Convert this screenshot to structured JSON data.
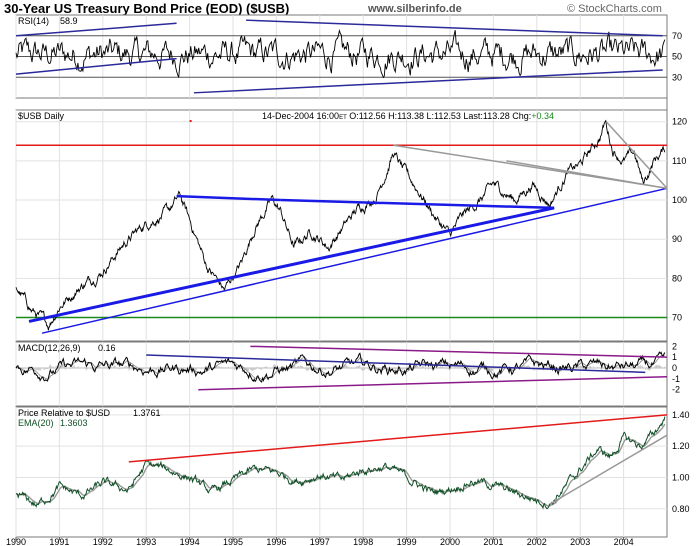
{
  "header": {
    "title": "30-Year US Treasury Bond Price (EOD) ($USB)",
    "site": "www.silberinfo.de",
    "credit": "© StockCharts.com"
  },
  "chart_data": [
    {
      "type": "line",
      "panel": "rsi",
      "label": "RSI(14)",
      "value_text": "58.9",
      "y_ticks": [
        "70",
        "50",
        "30"
      ],
      "ylim": [
        10,
        90
      ],
      "reference_levels": [
        70,
        50,
        30
      ],
      "trendlines": [
        {
          "color": "#2a2a9a",
          "points": [
            [
              1990.0,
              33
            ],
            [
              1993.7,
              48
            ]
          ]
        },
        {
          "color": "#2a2a9a",
          "points": [
            [
              1990.0,
              70
            ],
            [
              1993.7,
              82
            ]
          ]
        },
        {
          "color": "#2a2a9a",
          "points": [
            [
              1994.1,
              15
            ],
            [
              2004.9,
              37
            ]
          ]
        },
        {
          "color": "#2a2a9a",
          "points": [
            [
              1995.3,
              85
            ],
            [
              2004.9,
              70
            ]
          ]
        }
      ]
    },
    {
      "type": "line",
      "panel": "price",
      "label": "$USB Daily",
      "info": {
        "date": "14-Dec-2004 16:00",
        "tz": "ET",
        "open": "O:112.56",
        "high": "H:113.38",
        "low": "L:112.53",
        "last": "Last:113.28",
        "chg_label": "Chg:",
        "chg_value": "+0.34"
      },
      "y_ticks": [
        "120",
        "110",
        "100",
        "90",
        "80",
        "70"
      ],
      "ylim": [
        64,
        123
      ],
      "x_ticks": [
        "1990",
        "1991",
        "1992",
        "1993",
        "1994",
        "1995",
        "1996",
        "1997",
        "1998",
        "1999",
        "2000",
        "2001",
        "2002",
        "2003",
        "2004"
      ],
      "xlim": [
        1990.0,
        2005.0
      ],
      "anchors": [
        [
          1990.0,
          78
        ],
        [
          1990.35,
          72
        ],
        [
          1990.75,
          68
        ],
        [
          1991.0,
          73
        ],
        [
          1991.5,
          78
        ],
        [
          1992.0,
          82
        ],
        [
          1992.5,
          89
        ],
        [
          1993.0,
          94
        ],
        [
          1993.5,
          97
        ],
        [
          1993.78,
          101
        ],
        [
          1994.1,
          92
        ],
        [
          1994.4,
          83
        ],
        [
          1994.8,
          77
        ],
        [
          1995.2,
          84
        ],
        [
          1995.5,
          93
        ],
        [
          1995.9,
          100
        ],
        [
          1996.1,
          97
        ],
        [
          1996.4,
          88
        ],
        [
          1996.8,
          92
        ],
        [
          1997.2,
          88
        ],
        [
          1997.6,
          94
        ],
        [
          1997.9,
          98
        ],
        [
          1998.3,
          101
        ],
        [
          1998.7,
          112
        ],
        [
          1998.9,
          108
        ],
        [
          1999.3,
          102
        ],
        [
          1999.7,
          95
        ],
        [
          2000.0,
          91
        ],
        [
          2000.3,
          96
        ],
        [
          2000.7,
          100
        ],
        [
          2001.0,
          104
        ],
        [
          2001.5,
          100
        ],
        [
          2001.9,
          104
        ],
        [
          2002.3,
          99
        ],
        [
          2002.7,
          107
        ],
        [
          2003.0,
          109
        ],
        [
          2003.45,
          116
        ],
        [
          2003.58,
          120
        ],
        [
          2003.75,
          113
        ],
        [
          2004.0,
          110
        ],
        [
          2004.25,
          112
        ],
        [
          2004.45,
          104
        ],
        [
          2004.7,
          110
        ],
        [
          2004.95,
          113
        ]
      ],
      "horizontal_lines": [
        {
          "color": "#e31a1a",
          "value": 114
        },
        {
          "color": "#1a8a1a",
          "value": 70
        }
      ],
      "trendlines": [
        {
          "color": "#1a1ae6",
          "width": 2.5,
          "points": [
            [
              1993.7,
              101
            ],
            [
              1996.1,
              100
            ]
          ]
        },
        {
          "color": "#1a1ae6",
          "width": 2.5,
          "points": [
            [
              1996.1,
              100
            ],
            [
              2002.4,
              98
            ]
          ]
        },
        {
          "color": "#1a1ae6",
          "width": 3,
          "points": [
            [
              1990.3,
              69
            ],
            [
              2002.4,
              98
            ]
          ]
        },
        {
          "color": "#1a1ae6",
          "width": 1.5,
          "points": [
            [
              1990.6,
              66
            ],
            [
              2005.0,
              103
            ]
          ]
        },
        {
          "color": "#999999",
          "width": 1.5,
          "points": [
            [
              1998.7,
              114
            ],
            [
              2005.0,
              103
            ]
          ]
        },
        {
          "color": "#999999",
          "width": 1.5,
          "points": [
            [
              2003.6,
              120
            ],
            [
              2005.0,
              103
            ]
          ]
        },
        {
          "color": "#999999",
          "width": 1.5,
          "points": [
            [
              2001.3,
              110
            ],
            [
              2005.0,
              103
            ]
          ]
        }
      ]
    },
    {
      "type": "line",
      "panel": "macd",
      "label": "MACD(12,26,9)",
      "value_text": "0.16",
      "y_ticks": [
        "2",
        "1",
        "0",
        "-1",
        "-2"
      ],
      "ylim": [
        -3.5,
        2.4
      ],
      "trendlines": [
        {
          "color": "#8a1a8a",
          "points": [
            [
              1994.2,
              -2
            ],
            [
              2005.0,
              -0.8
            ]
          ]
        },
        {
          "color": "#8a1a8a",
          "points": [
            [
              1995.4,
              2
            ],
            [
              2005.0,
              1
            ]
          ]
        },
        {
          "color": "#2a2a9a",
          "points": [
            [
              1993.0,
              1.2
            ],
            [
              2004.5,
              -0.4
            ]
          ]
        }
      ]
    },
    {
      "type": "line",
      "panel": "relative",
      "label": "Price Relative to $USD",
      "value_text": "1.3761",
      "ema_label": "EMA(20)",
      "ema_value": "1.3603",
      "y_ticks": [
        "1.40",
        "1.20",
        "1.00",
        "0.80"
      ],
      "ylim": [
        0.62,
        1.45
      ],
      "anchors": [
        [
          1990.0,
          0.9
        ],
        [
          1990.5,
          0.82
        ],
        [
          1991.0,
          0.94
        ],
        [
          1991.5,
          0.88
        ],
        [
          1992.0,
          0.96
        ],
        [
          1992.6,
          0.92
        ],
        [
          1993.0,
          1.08
        ],
        [
          1993.5,
          1.05
        ],
        [
          1994.0,
          1.0
        ],
        [
          1994.5,
          0.9
        ],
        [
          1995.0,
          0.98
        ],
        [
          1995.5,
          1.05
        ],
        [
          1996.0,
          1.03
        ],
        [
          1996.5,
          0.98
        ],
        [
          1997.0,
          1.02
        ],
        [
          1997.5,
          0.98
        ],
        [
          1998.0,
          1.05
        ],
        [
          1998.5,
          1.07
        ],
        [
          1999.0,
          1.0
        ],
        [
          1999.6,
          0.9
        ],
        [
          2000.0,
          0.93
        ],
        [
          2000.5,
          0.98
        ],
        [
          2001.0,
          0.95
        ],
        [
          2001.5,
          0.9
        ],
        [
          2002.0,
          0.86
        ],
        [
          2002.3,
          0.84
        ],
        [
          2002.7,
          0.95
        ],
        [
          2003.0,
          1.05
        ],
        [
          2003.4,
          1.18
        ],
        [
          2003.7,
          1.13
        ],
        [
          2004.0,
          1.25
        ],
        [
          2004.4,
          1.2
        ],
        [
          2004.7,
          1.28
        ],
        [
          2004.95,
          1.38
        ]
      ],
      "trendlines": [
        {
          "color": "#e31a1a",
          "points": [
            [
              1992.6,
              1.1
            ],
            [
              2005.0,
              1.4
            ]
          ]
        },
        {
          "color": "#999999",
          "points": [
            [
              2002.3,
              0.83
            ],
            [
              2005.0,
              1.27
            ]
          ]
        }
      ]
    }
  ],
  "colors": {
    "price_line": "#000000",
    "relative_line": "#0f4f25",
    "ema_line": "#999999",
    "info_green": "#1a8a1a",
    "panel_border": "#7a7a7a"
  }
}
